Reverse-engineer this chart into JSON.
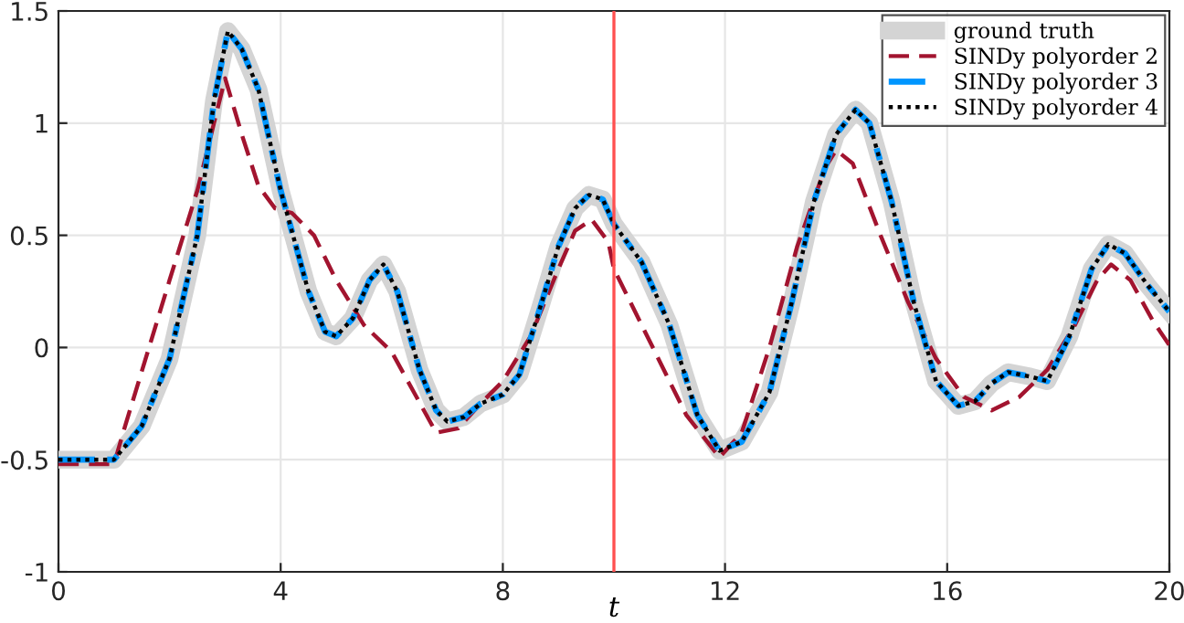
{
  "chart_data": {
    "type": "line",
    "xlabel": "t",
    "x": [
      0,
      1,
      1.5,
      2,
      2.5,
      2.8,
      3.05,
      3.3,
      3.6,
      4,
      4.5,
      4.8,
      5.0,
      5.3,
      5.6,
      5.85,
      6.1,
      6.5,
      6.8,
      7.0,
      7.3,
      7.6,
      8.0,
      8.3,
      8.7,
      9.0,
      9.3,
      9.55,
      9.8,
      10.0,
      10.5,
      11,
      11.5,
      11.9,
      12.3,
      12.8,
      13.2,
      13.6,
      14.0,
      14.35,
      14.6,
      15.0,
      15.4,
      15.8,
      16.2,
      16.5,
      16.8,
      17.1,
      17.5,
      17.8,
      18.2,
      18.6,
      18.9,
      19.2,
      19.6,
      20
    ],
    "series": [
      {
        "name": "ground truth",
        "color": "#d4d4d4",
        "line_style": "solid",
        "values": [
          -0.5,
          -0.5,
          -0.35,
          -0.05,
          0.5,
          1.1,
          1.41,
          1.33,
          1.15,
          0.7,
          0.25,
          0.07,
          0.05,
          0.13,
          0.3,
          0.37,
          0.25,
          -0.1,
          -0.28,
          -0.33,
          -0.31,
          -0.25,
          -0.21,
          -0.12,
          0.2,
          0.45,
          0.62,
          0.68,
          0.66,
          0.55,
          0.38,
          0.1,
          -0.3,
          -0.46,
          -0.42,
          -0.2,
          0.2,
          0.65,
          0.95,
          1.06,
          1.0,
          0.65,
          0.2,
          -0.15,
          -0.26,
          -0.24,
          -0.16,
          -0.11,
          -0.13,
          -0.15,
          0.05,
          0.35,
          0.46,
          0.42,
          0.28,
          0.16
        ]
      },
      {
        "name": "SINDy polyorder 2",
        "color": "#a2142f",
        "line_style": "dashed",
        "x": [
          0,
          1.0,
          1.2,
          2.0,
          2.5,
          2.8,
          3.0,
          3.3,
          3.6,
          3.9,
          4.2,
          4.6,
          5.0,
          5.5,
          6.0,
          6.4,
          6.8,
          7.2,
          7.6,
          8.0,
          8.5,
          9.0,
          9.3,
          9.6,
          9.9,
          10.0,
          10.3,
          10.8,
          11.3,
          11.9,
          12.3,
          12.8,
          13.3,
          13.8,
          14.0,
          14.3,
          14.8,
          15.3,
          15.8,
          16.3,
          16.8,
          17.3,
          17.8,
          18.3,
          18.7,
          18.95,
          19.3,
          19.7,
          20
        ],
        "values": [
          -0.52,
          -0.52,
          -0.35,
          0.3,
          0.7,
          1.0,
          1.2,
          0.95,
          0.72,
          0.62,
          0.6,
          0.5,
          0.3,
          0.1,
          -0.02,
          -0.2,
          -0.38,
          -0.36,
          -0.25,
          -0.15,
          0.05,
          0.35,
          0.52,
          0.57,
          0.47,
          0.35,
          0.2,
          -0.05,
          -0.3,
          -0.49,
          -0.38,
          0.0,
          0.45,
          0.8,
          0.88,
          0.82,
          0.5,
          0.2,
          -0.05,
          -0.22,
          -0.28,
          -0.22,
          -0.1,
          0.1,
          0.3,
          0.37,
          0.3,
          0.12,
          0.01
        ]
      },
      {
        "name": "SINDy polyorder 3",
        "color": "#0096ff",
        "line_style": "dashdot",
        "values": [
          -0.5,
          -0.5,
          -0.35,
          -0.05,
          0.5,
          1.1,
          1.41,
          1.33,
          1.15,
          0.7,
          0.25,
          0.07,
          0.05,
          0.13,
          0.3,
          0.37,
          0.25,
          -0.1,
          -0.28,
          -0.33,
          -0.31,
          -0.25,
          -0.21,
          -0.12,
          0.2,
          0.45,
          0.62,
          0.68,
          0.66,
          0.55,
          0.38,
          0.1,
          -0.3,
          -0.46,
          -0.42,
          -0.2,
          0.2,
          0.65,
          0.95,
          1.06,
          1.0,
          0.65,
          0.2,
          -0.15,
          -0.26,
          -0.24,
          -0.16,
          -0.11,
          -0.13,
          -0.15,
          0.05,
          0.35,
          0.46,
          0.42,
          0.28,
          0.16
        ]
      },
      {
        "name": "SINDy polyorder 4",
        "color": "#000000",
        "line_style": "dotted",
        "values": [
          -0.5,
          -0.5,
          -0.35,
          -0.05,
          0.5,
          1.1,
          1.41,
          1.33,
          1.15,
          0.7,
          0.25,
          0.07,
          0.05,
          0.13,
          0.3,
          0.37,
          0.25,
          -0.1,
          -0.28,
          -0.33,
          -0.31,
          -0.25,
          -0.21,
          -0.12,
          0.2,
          0.45,
          0.62,
          0.68,
          0.66,
          0.55,
          0.38,
          0.1,
          -0.3,
          -0.46,
          -0.42,
          -0.2,
          0.2,
          0.65,
          0.95,
          1.06,
          1.0,
          0.65,
          0.2,
          -0.15,
          -0.26,
          -0.24,
          -0.16,
          -0.11,
          -0.13,
          -0.15,
          0.05,
          0.35,
          0.46,
          0.42,
          0.28,
          0.16
        ]
      }
    ],
    "xlim": [
      0,
      20
    ],
    "xticks": [
      0,
      4,
      8,
      12,
      16,
      20
    ],
    "ylim": [
      -1,
      1.5
    ],
    "yticks": [
      -1,
      -0.5,
      0,
      0.5,
      1,
      1.5
    ],
    "ref_lines": [
      {
        "axis": "x",
        "value": 10,
        "color": "#ff5050",
        "line_style": "solid"
      }
    ],
    "grid": true,
    "legend": "top right",
    "marker": "none"
  }
}
